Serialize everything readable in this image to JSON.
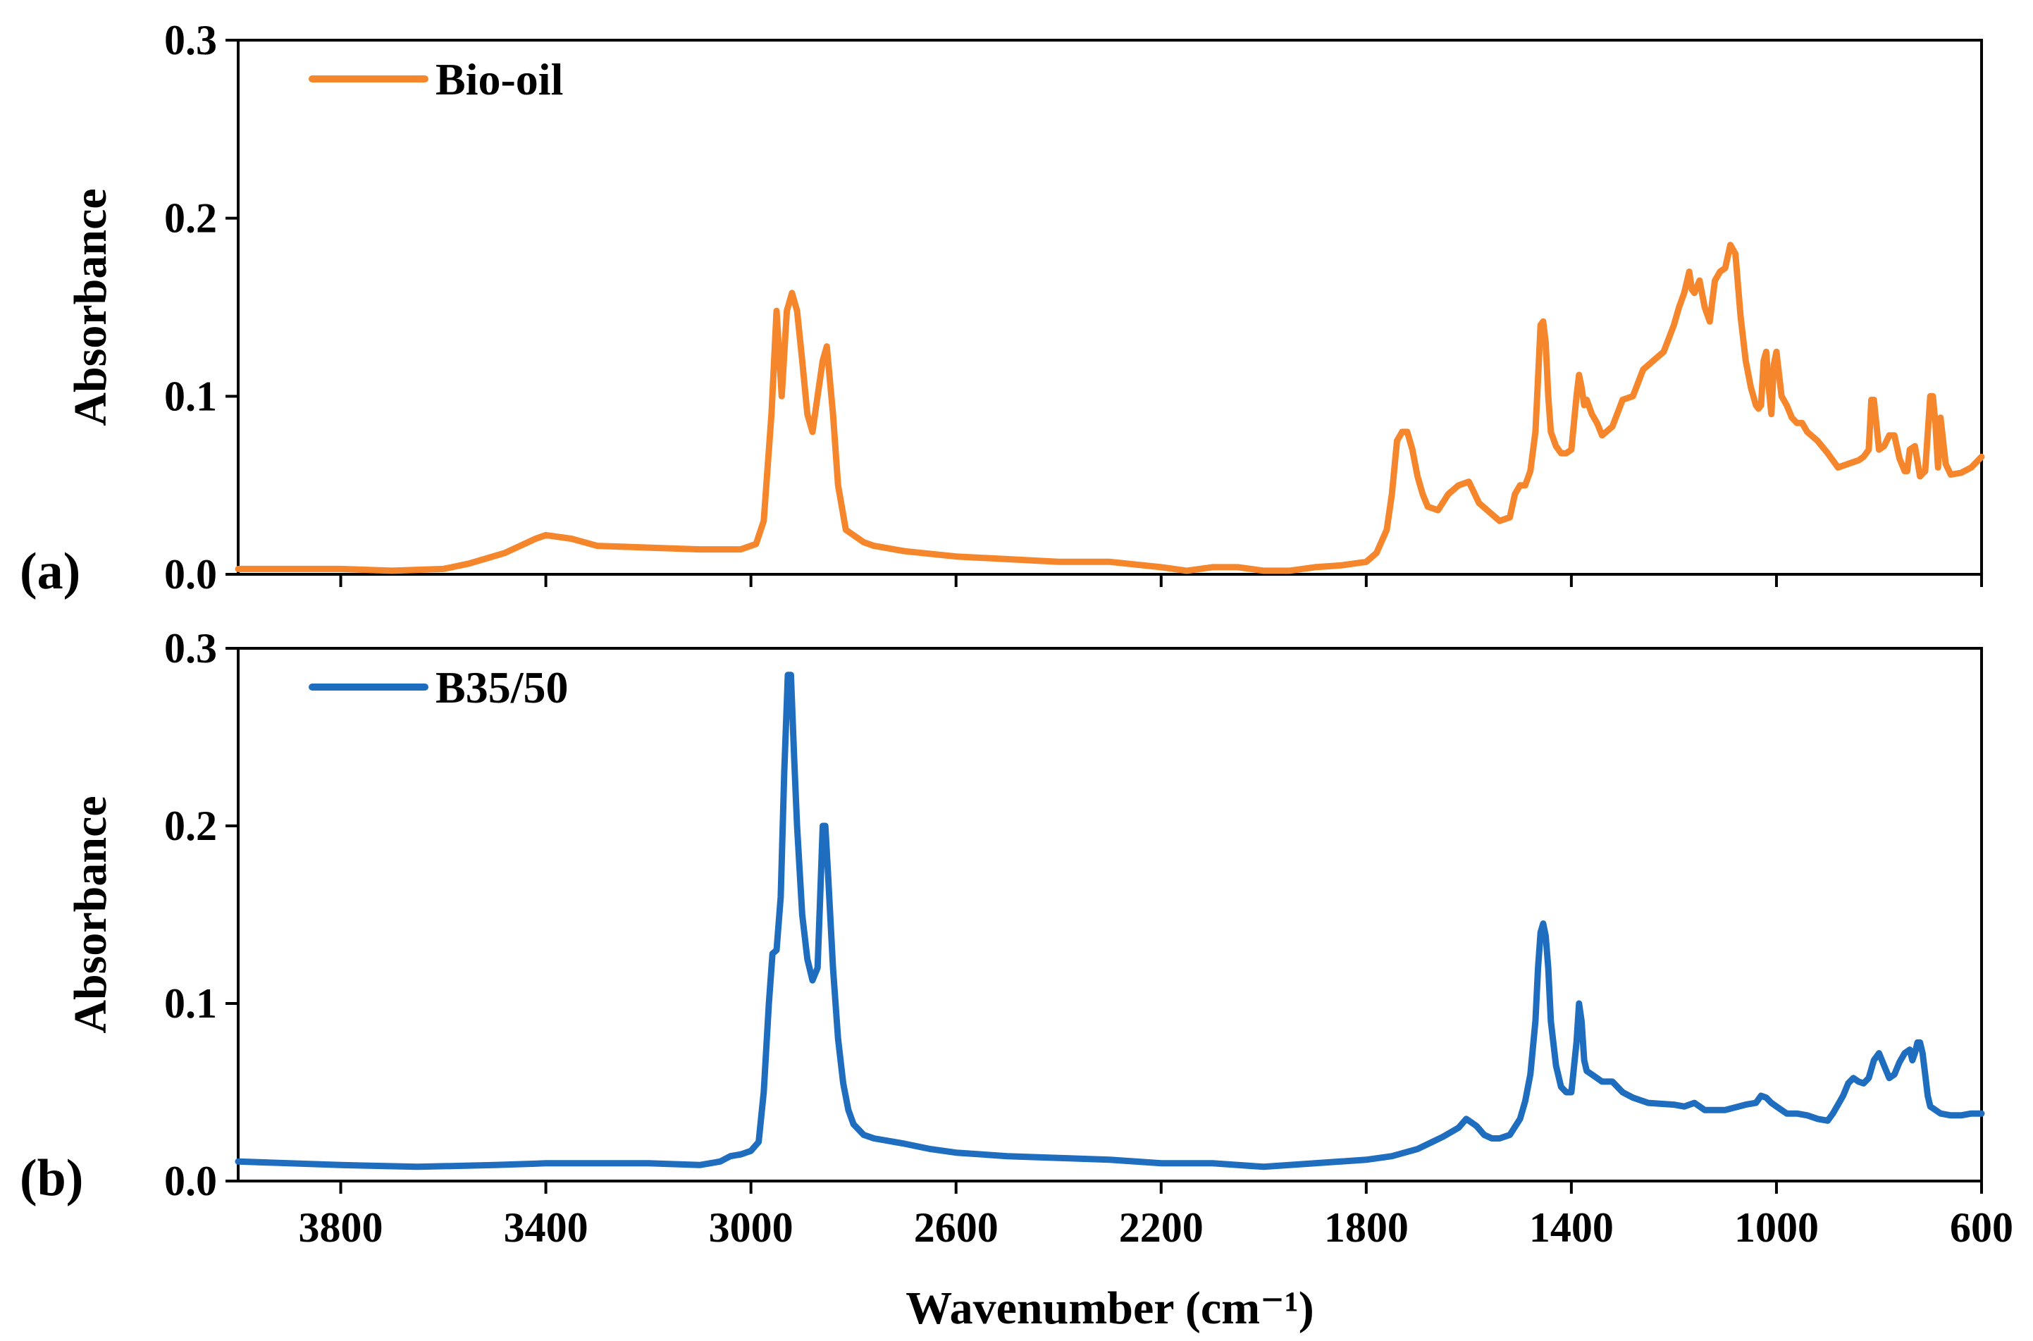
{
  "chart_data": [
    {
      "type": "line",
      "panel_label": "(a)",
      "ylabel": "Absorbance",
      "xlabel": "",
      "xlim": [
        4000,
        600
      ],
      "ylim": [
        0,
        0.3
      ],
      "x_ticks": [
        "3800",
        "3400",
        "3000",
        "2600",
        "2200",
        "1800",
        "1400",
        "1000",
        "600"
      ],
      "y_ticks": [
        "0.0",
        "0.1",
        "0.2",
        "0.3"
      ],
      "legend_position": "top-left",
      "series": [
        {
          "name": "Bio-oil",
          "color": "#F5862C",
          "x": [
            4000,
            3800,
            3700,
            3600,
            3550,
            3480,
            3420,
            3400,
            3350,
            3300,
            3200,
            3100,
            3020,
            2990,
            2975,
            2960,
            2950,
            2940,
            2930,
            2920,
            2910,
            2900,
            2890,
            2880,
            2870,
            2860,
            2852,
            2840,
            2830,
            2815,
            2800,
            2780,
            2760,
            2740,
            2700,
            2600,
            2400,
            2300,
            2200,
            2150,
            2100,
            2050,
            2000,
            1950,
            1900,
            1850,
            1800,
            1780,
            1760,
            1750,
            1740,
            1730,
            1720,
            1710,
            1700,
            1690,
            1680,
            1660,
            1640,
            1620,
            1600,
            1580,
            1560,
            1540,
            1520,
            1510,
            1500,
            1490,
            1480,
            1470,
            1465,
            1460,
            1455,
            1450,
            1445,
            1440,
            1430,
            1420,
            1410,
            1400,
            1390,
            1385,
            1380,
            1375,
            1370,
            1360,
            1350,
            1340,
            1320,
            1300,
            1280,
            1260,
            1240,
            1220,
            1200,
            1190,
            1180,
            1170,
            1165,
            1160,
            1150,
            1140,
            1130,
            1120,
            1110,
            1100,
            1090,
            1080,
            1070,
            1060,
            1050,
            1040,
            1035,
            1030,
            1025,
            1020,
            1015,
            1010,
            1005,
            1000,
            990,
            980,
            970,
            960,
            950,
            940,
            920,
            900,
            880,
            860,
            840,
            830,
            820,
            815,
            810,
            800,
            790,
            780,
            770,
            760,
            750,
            745,
            740,
            730,
            720,
            710,
            700,
            695,
            690,
            685,
            680,
            670,
            660,
            640,
            620,
            600
          ],
          "y": [
            0.003,
            0.003,
            0.002,
            0.003,
            0.006,
            0.012,
            0.02,
            0.022,
            0.02,
            0.016,
            0.015,
            0.014,
            0.014,
            0.017,
            0.03,
            0.09,
            0.148,
            0.1,
            0.148,
            0.158,
            0.148,
            0.12,
            0.09,
            0.08,
            0.1,
            0.12,
            0.128,
            0.09,
            0.05,
            0.025,
            0.022,
            0.018,
            0.016,
            0.015,
            0.013,
            0.01,
            0.007,
            0.007,
            0.004,
            0.002,
            0.004,
            0.004,
            0.002,
            0.002,
            0.004,
            0.005,
            0.007,
            0.012,
            0.025,
            0.045,
            0.075,
            0.08,
            0.08,
            0.07,
            0.055,
            0.045,
            0.038,
            0.036,
            0.045,
            0.05,
            0.052,
            0.04,
            0.035,
            0.03,
            0.032,
            0.045,
            0.05,
            0.05,
            0.058,
            0.08,
            0.11,
            0.14,
            0.142,
            0.13,
            0.1,
            0.08,
            0.072,
            0.068,
            0.068,
            0.07,
            0.1,
            0.112,
            0.105,
            0.095,
            0.098,
            0.09,
            0.085,
            0.078,
            0.083,
            0.098,
            0.1,
            0.115,
            0.12,
            0.125,
            0.14,
            0.15,
            0.158,
            0.17,
            0.16,
            0.158,
            0.165,
            0.15,
            0.142,
            0.165,
            0.17,
            0.172,
            0.185,
            0.18,
            0.145,
            0.12,
            0.105,
            0.095,
            0.093,
            0.095,
            0.12,
            0.125,
            0.105,
            0.09,
            0.118,
            0.125,
            0.1,
            0.095,
            0.088,
            0.085,
            0.085,
            0.08,
            0.075,
            0.068,
            0.06,
            0.062,
            0.064,
            0.066,
            0.07,
            0.098,
            0.098,
            0.07,
            0.072,
            0.078,
            0.078,
            0.065,
            0.058,
            0.058,
            0.07,
            0.072,
            0.055,
            0.058,
            0.1,
            0.1,
            0.085,
            0.06,
            0.088,
            0.062,
            0.056,
            0.057,
            0.06,
            0.066
          ]
        }
      ]
    },
    {
      "type": "line",
      "panel_label": "(b)",
      "ylabel": "Absorbance",
      "xlabel": "Wavenumber (cm⁻¹)",
      "xlim": [
        4000,
        600
      ],
      "ylim": [
        0,
        0.3
      ],
      "x_ticks": [
        "3800",
        "3400",
        "3000",
        "2600",
        "2200",
        "1800",
        "1400",
        "1000",
        "600"
      ],
      "y_ticks": [
        "0.0",
        "0.1",
        "0.2",
        "0.3"
      ],
      "legend_position": "top-left",
      "series": [
        {
          "name": "B35/50",
          "color": "#1F6DBF",
          "x": [
            4000,
            3800,
            3650,
            3500,
            3400,
            3300,
            3200,
            3100,
            3060,
            3040,
            3020,
            3000,
            2985,
            2975,
            2965,
            2958,
            2950,
            2942,
            2935,
            2928,
            2922,
            2916,
            2910,
            2900,
            2890,
            2880,
            2870,
            2865,
            2860,
            2855,
            2850,
            2840,
            2830,
            2820,
            2810,
            2800,
            2780,
            2760,
            2740,
            2720,
            2700,
            2650,
            2600,
            2500,
            2400,
            2300,
            2200,
            2150,
            2100,
            2050,
            2000,
            1950,
            1900,
            1850,
            1800,
            1750,
            1700,
            1650,
            1620,
            1605,
            1595,
            1585,
            1570,
            1555,
            1540,
            1520,
            1500,
            1490,
            1480,
            1470,
            1465,
            1460,
            1455,
            1450,
            1445,
            1440,
            1430,
            1420,
            1410,
            1400,
            1390,
            1385,
            1380,
            1375,
            1370,
            1360,
            1340,
            1320,
            1300,
            1280,
            1250,
            1200,
            1180,
            1160,
            1140,
            1100,
            1060,
            1040,
            1030,
            1020,
            1010,
            1000,
            980,
            960,
            940,
            920,
            900,
            890,
            880,
            870,
            860,
            850,
            840,
            830,
            820,
            810,
            800,
            790,
            780,
            770,
            760,
            750,
            740,
            735,
            730,
            725,
            720,
            715,
            710,
            705,
            700,
            690,
            680,
            660,
            640,
            620,
            600
          ],
          "y": [
            0.011,
            0.009,
            0.008,
            0.009,
            0.01,
            0.01,
            0.01,
            0.009,
            0.011,
            0.014,
            0.015,
            0.017,
            0.022,
            0.05,
            0.1,
            0.128,
            0.13,
            0.16,
            0.23,
            0.285,
            0.285,
            0.24,
            0.2,
            0.15,
            0.125,
            0.113,
            0.12,
            0.16,
            0.2,
            0.2,
            0.175,
            0.12,
            0.08,
            0.055,
            0.04,
            0.032,
            0.026,
            0.024,
            0.023,
            0.022,
            0.021,
            0.018,
            0.016,
            0.014,
            0.013,
            0.012,
            0.01,
            0.01,
            0.01,
            0.009,
            0.008,
            0.009,
            0.01,
            0.011,
            0.012,
            0.014,
            0.018,
            0.025,
            0.03,
            0.035,
            0.033,
            0.031,
            0.026,
            0.024,
            0.024,
            0.026,
            0.035,
            0.045,
            0.06,
            0.09,
            0.12,
            0.14,
            0.145,
            0.138,
            0.12,
            0.09,
            0.065,
            0.053,
            0.05,
            0.05,
            0.078,
            0.1,
            0.09,
            0.068,
            0.062,
            0.06,
            0.056,
            0.056,
            0.05,
            0.047,
            0.044,
            0.043,
            0.042,
            0.044,
            0.04,
            0.04,
            0.043,
            0.044,
            0.048,
            0.047,
            0.044,
            0.042,
            0.038,
            0.038,
            0.037,
            0.035,
            0.034,
            0.038,
            0.043,
            0.048,
            0.055,
            0.058,
            0.056,
            0.055,
            0.058,
            0.068,
            0.072,
            0.065,
            0.058,
            0.06,
            0.067,
            0.072,
            0.074,
            0.068,
            0.072,
            0.078,
            0.078,
            0.072,
            0.06,
            0.048,
            0.042,
            0.04,
            0.038,
            0.037,
            0.037,
            0.038,
            0.038
          ]
        }
      ]
    }
  ]
}
